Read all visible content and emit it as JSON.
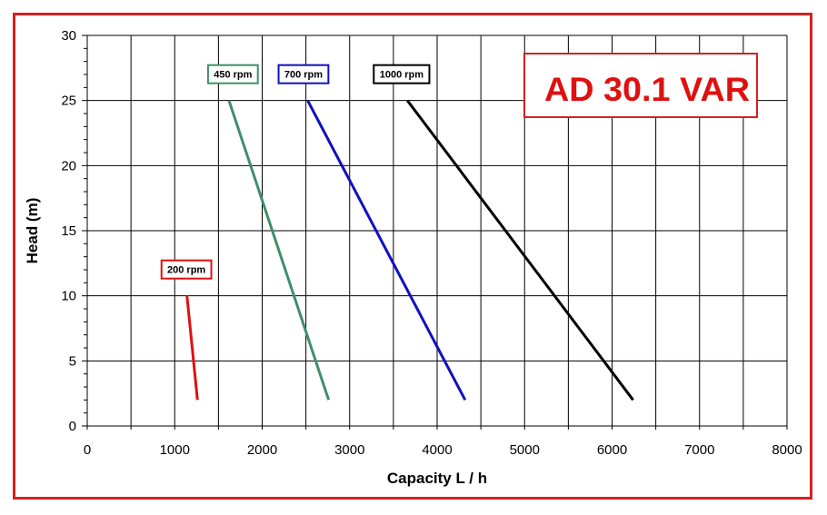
{
  "chart_data": {
    "type": "line",
    "title": "AD 30.1 VAR",
    "xlabel": "Capacity  L / h",
    "ylabel": "Head (m)",
    "xlim": [
      0,
      8000
    ],
    "ylim": [
      0,
      30
    ],
    "xticks": [
      0,
      1000,
      2000,
      3000,
      4000,
      5000,
      6000,
      7000,
      8000
    ],
    "yticks": [
      0,
      5,
      10,
      15,
      20,
      25,
      30
    ],
    "grid": true,
    "series": [
      {
        "name": "200 rpm",
        "color": "#e01010",
        "x": [
          1140,
          1260
        ],
        "y": [
          10,
          2
        ]
      },
      {
        "name": "450 rpm",
        "color": "#3f8f68",
        "x": [
          1620,
          2760
        ],
        "y": [
          25,
          2
        ]
      },
      {
        "name": "700 rpm",
        "color": "#1010c0",
        "x": [
          2520,
          4320
        ],
        "y": [
          25,
          2
        ]
      },
      {
        "name": "1000 rpm",
        "color": "#000000",
        "x": [
          3660,
          6240
        ],
        "y": [
          25,
          2
        ]
      }
    ]
  },
  "colors": {
    "frame": "#d62020",
    "model_text": "#e01010",
    "grid": "#000000"
  }
}
